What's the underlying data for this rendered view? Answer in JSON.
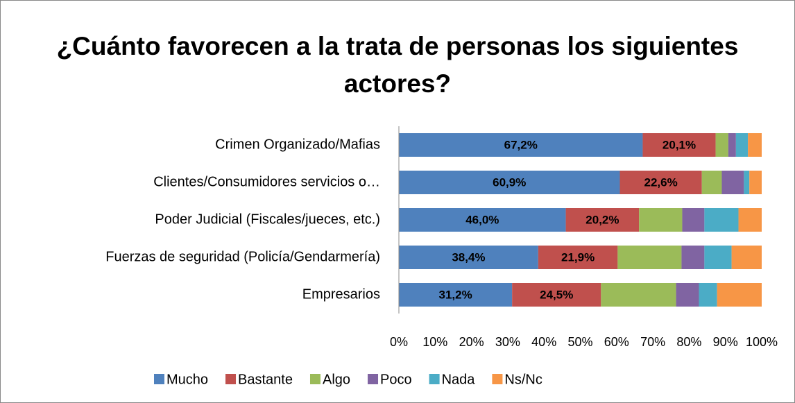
{
  "chart_data": {
    "type": "stacked-bar-horizontal",
    "title": "¿Cuánto favorecen a la trata de personas los siguientes actores?",
    "categories": [
      "Crimen Organizado/Mafias",
      "Clientes/Consumidores servicios o…",
      "Poder Judicial (Fiscales/jueces, etc.)",
      "Fuerzas de seguridad (Policía/Gendarmería)",
      "Empresarios"
    ],
    "series": [
      {
        "name": "Mucho",
        "color": "#4f81bd",
        "values": [
          67.2,
          60.9,
          46.0,
          38.4,
          31.2
        ],
        "value_labels": [
          "67,2%",
          "60,9%",
          "46,0%",
          "38,4%",
          "31,2%"
        ]
      },
      {
        "name": "Bastante",
        "color": "#c0504d",
        "values": [
          20.1,
          22.6,
          20.2,
          21.9,
          24.5
        ],
        "value_labels": [
          "20,1%",
          "22,6%",
          "20,2%",
          "21,9%",
          "24,5%"
        ]
      },
      {
        "name": "Algo",
        "color": "#9bbb59",
        "values": [
          3.5,
          5.5,
          11.9,
          17.6,
          20.7
        ]
      },
      {
        "name": "Poco",
        "color": "#8064a2",
        "values": [
          2.1,
          6.1,
          6.1,
          6.3,
          6.3
        ]
      },
      {
        "name": "Nada",
        "color": "#4bacc6",
        "values": [
          3.3,
          1.5,
          9.4,
          7.5,
          5.0
        ]
      },
      {
        "name": "Ns/Nc",
        "color": "#f79646",
        "values": [
          3.8,
          3.4,
          6.4,
          8.3,
          12.3
        ]
      }
    ],
    "xlim": [
      0,
      100
    ],
    "xticks": [
      {
        "value": 0,
        "label": "0%"
      },
      {
        "value": 10,
        "label": "10%"
      },
      {
        "value": 20,
        "label": "20%"
      },
      {
        "value": 30,
        "label": "30%"
      },
      {
        "value": 40,
        "label": "40%"
      },
      {
        "value": 50,
        "label": "50%"
      },
      {
        "value": 60,
        "label": "60%"
      },
      {
        "value": 70,
        "label": "70%"
      },
      {
        "value": 80,
        "label": "80%"
      },
      {
        "value": 90,
        "label": "90%"
      },
      {
        "value": 100,
        "label": "100%"
      }
    ],
    "legend": "bottom"
  }
}
